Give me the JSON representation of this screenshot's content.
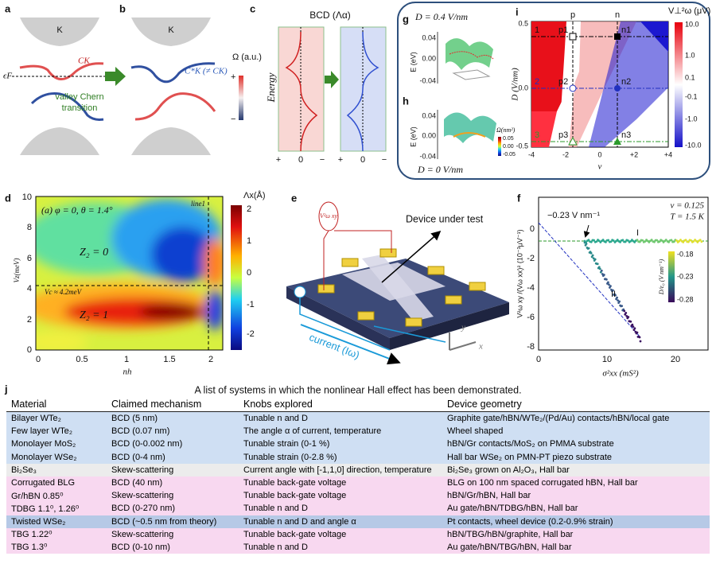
{
  "panel_labels": [
    "a",
    "b",
    "c",
    "d",
    "e",
    "f",
    "g",
    "h",
    "i",
    "j"
  ],
  "panel_a": {
    "valley": "K",
    "fermi": "ϵF",
    "chern": "CK"
  },
  "panel_b": {
    "valley": "K",
    "chern": "C*K (≠ CK)",
    "arrow_text": [
      "valley Chern",
      "transition"
    ]
  },
  "berry_colorbar": {
    "label": "Ω (a.u.)",
    "top": "+",
    "bottom": "−"
  },
  "panel_c": {
    "title": "BCD (Λα)",
    "ylabel": "Energy",
    "xticks": [
      "+",
      "0",
      "−",
      "+",
      "0",
      "−"
    ]
  },
  "panel_g": {
    "title": "D = 0.4 V/nm",
    "ylabel": "E (eV)",
    "yticks": [
      "0.04",
      "0.00",
      "-0.04"
    ]
  },
  "panel_h": {
    "footer": "D = 0 V/nm",
    "ylabel": "E (eV)",
    "yticks": [
      "0.04",
      "0.00",
      "-0.04"
    ],
    "colorbar_label": "Ω(nm²)",
    "colorbar_ticks": [
      "0.05",
      "0.00",
      "-0.05"
    ]
  },
  "panel_i": {
    "colorbar_label": "V⊥²ω (μV)",
    "top_labels": [
      "p",
      "n"
    ],
    "points": [
      "p1",
      "n1",
      "p2",
      "n2",
      "p3",
      "n3"
    ],
    "lines": [
      "1",
      "2",
      "3"
    ],
    "ylabel": "D (V/nm)",
    "yticks": [
      "0.5",
      "0.0",
      "-0.5"
    ],
    "xlabel": "ν",
    "xticks": [
      "-4",
      "-2",
      "0",
      "+2",
      "+4"
    ],
    "colorbar_ticks": [
      "10.0",
      "1.0",
      "0.1",
      "-0.1",
      "-1.0",
      "-10.0"
    ]
  },
  "panel_d": {
    "inset_title": "(a) φ = 0, θ = 1.4°",
    "line_label": "line1",
    "phase_top": "Z₂ = 0",
    "phase_bottom": "Z₂ = 1",
    "critical": "Vc ≈ 4.2meV",
    "ylabel": "Vz(meV)",
    "yticks": [
      "10",
      "8",
      "6",
      "4",
      "2",
      "0"
    ],
    "xlabel": "nh",
    "xticks": [
      "0",
      "0.5",
      "1",
      "1.5",
      "2"
    ],
    "colorbar_label": "Λx(Å)",
    "colorbar_ticks": [
      "2",
      "1",
      "0",
      "-1",
      "-2"
    ]
  },
  "panel_e": {
    "device": "Device under test",
    "current": "current (Iω)",
    "voltage": "V²ω xy",
    "axis_y": "y",
    "axis_x": "x"
  },
  "panel_f": {
    "slope": "−0.23 V nm⁻¹",
    "nu": "ν = 0.125",
    "temp": "T = 1.5 K",
    "regime_1": "I",
    "regime_2": "II",
    "ylabel": "V²ω xy /(Vω xx)² (10⁻³μV⁻¹)",
    "yticks": [
      "0",
      "-2",
      "-4",
      "-6",
      "-8"
    ],
    "xlabel": "σ²xx (mS²)",
    "xticks": [
      "0",
      "10",
      "20"
    ],
    "colorbar_label": "D/ε₀ (V nm⁻¹)",
    "colorbar_ticks": [
      "-0.18",
      "-0.23",
      "-0.28"
    ]
  },
  "table": {
    "caption": "A list of systems in which the nonlinear Hall effect has been demonstrated.",
    "header": [
      "Material",
      "Claimed mechanism",
      "Knobs explored",
      "Device geometry"
    ],
    "rows": [
      [
        "Bilayer WTe₂",
        "BCD (5 nm)",
        "Tunable n and D",
        "Graphite gate/hBN/WTe₂/(Pd/Au) contacts/hBN/local gate"
      ],
      [
        "Few layer WTe₂",
        "BCD (0.07 nm)",
        "The angle α of current, temperature",
        "Wheel shaped"
      ],
      [
        "Monolayer MoS₂",
        "BCD (0-0.002 nm)",
        "Tunable strain (0-1 %)",
        "hBN/Gr contacts/MoS₂ on PMMA substrate"
      ],
      [
        "Monolayer WSe₂",
        "BCD (0-4 nm)",
        "Tunable strain (0-2.8 %)",
        "Hall bar WSe₂ on PMN-PT piezo substrate"
      ],
      [
        "Bi₂Se₃",
        "Skew-scattering",
        "Current angle with [-1,1,0] direction, temperature",
        "Bi₂Se₃ grown on Al₂O₃, Hall bar"
      ],
      [
        "Corrugated BLG",
        "BCD (40 nm)",
        "Tunable back-gate voltage",
        "BLG on 100 nm spaced corrugated hBN, Hall bar"
      ],
      [
        "Gr/hBN 0.85⁰",
        "Skew-scattering",
        "Tunable back-gate voltage",
        "hBN/Gr/hBN, Hall bar"
      ],
      [
        "TDBG 1.1⁰, 1.26⁰",
        "BCD (0-270 nm)",
        "Tunable n and D",
        "Au gate/hBN/TDBG/hBN, Hall bar"
      ],
      [
        "Twisted WSe₂",
        "BCD (~0.5 nm from theory)",
        "Tunable n and D and angle α",
        "Pt contacts, wheel device (0.2-0.9% strain)"
      ],
      [
        "TBG 1.22⁰",
        "Skew-scattering",
        "Tunable back-gate voltage",
        "hBN/TBG/hBN/graphite, Hall bar"
      ],
      [
        "TBG 1.3⁰",
        "BCD (0-10 nm)",
        "Tunable n and D",
        "Au gate/hBN/TBG/hBN, Hall bar"
      ]
    ]
  }
}
